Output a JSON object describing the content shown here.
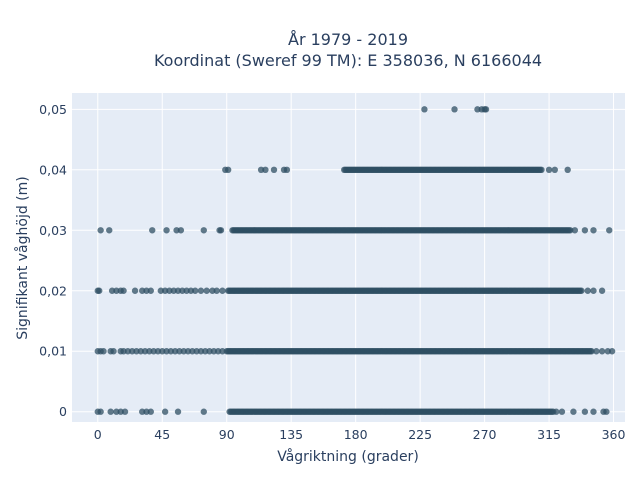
{
  "chart_data": {
    "type": "scatter",
    "title_lines": [
      "År 1979 - 2019",
      "Koordinat (Sweref 99 TM): E 358036, N 6166044"
    ],
    "xlabel": "Vågriktning (grader)",
    "ylabel": "Signifikant våghöjd (m)",
    "xlim": [
      -18,
      368
    ],
    "ylim": [
      -0.0017,
      0.0527
    ],
    "x_ticks": [
      0,
      45,
      90,
      135,
      180,
      225,
      270,
      315,
      360
    ],
    "x_tick_labels": [
      "0",
      "45",
      "90",
      "135",
      "180",
      "225",
      "270",
      "315",
      "360"
    ],
    "y_ticks": [
      0,
      0.01,
      0.02,
      0.03,
      0.04,
      0.05
    ],
    "y_tick_labels": [
      "0",
      "0,01",
      "0,02",
      "0,03",
      "0,04",
      "0,05"
    ],
    "grid": true,
    "marker_color": "#2f4f63",
    "series": [
      {
        "y": 0,
        "sparse_x": [
          0,
          2,
          9,
          13,
          16,
          19,
          31,
          34,
          37,
          47,
          56,
          74
        ],
        "dense_ranges": [
          [
            92,
            318
          ]
        ],
        "extra_x": [
          320,
          324,
          332,
          340,
          346,
          353,
          355
        ]
      },
      {
        "y": 0.01,
        "sparse_x": [
          0,
          2,
          4,
          9,
          11,
          16,
          18,
          21,
          24,
          27,
          30,
          33,
          36,
          39,
          42,
          45,
          48,
          51,
          54,
          57,
          60,
          63,
          66,
          69,
          72,
          75,
          78,
          81,
          84,
          87
        ],
        "dense_ranges": [
          [
            90,
            345
          ]
        ],
        "extra_x": [
          348,
          352,
          356,
          359
        ]
      },
      {
        "y": 0.02,
        "sparse_x": [
          0,
          1,
          10,
          13,
          16,
          18,
          26,
          31,
          34,
          37,
          44,
          47,
          50,
          53,
          56,
          59,
          62,
          65,
          68,
          72,
          76,
          80,
          83,
          87
        ],
        "dense_ranges": [
          [
            91,
            338
          ]
        ],
        "extra_x": [
          342,
          346,
          352
        ]
      },
      {
        "y": 0.03,
        "sparse_x": [
          2,
          8,
          38,
          48,
          55,
          58,
          74,
          85,
          86
        ],
        "dense_ranges": [
          [
            94,
            330
          ]
        ],
        "extra_x": [
          333,
          340,
          346,
          357
        ]
      },
      {
        "y": 0.04,
        "sparse_x": [
          89,
          91,
          114,
          117,
          123,
          130,
          132
        ],
        "dense_ranges": [
          [
            172,
            310
          ]
        ],
        "extra_x": [
          315,
          319,
          328
        ]
      },
      {
        "y": 0.05,
        "sparse_x": [
          228,
          249,
          265,
          268,
          270,
          271
        ],
        "dense_ranges": [],
        "extra_x": []
      }
    ]
  }
}
